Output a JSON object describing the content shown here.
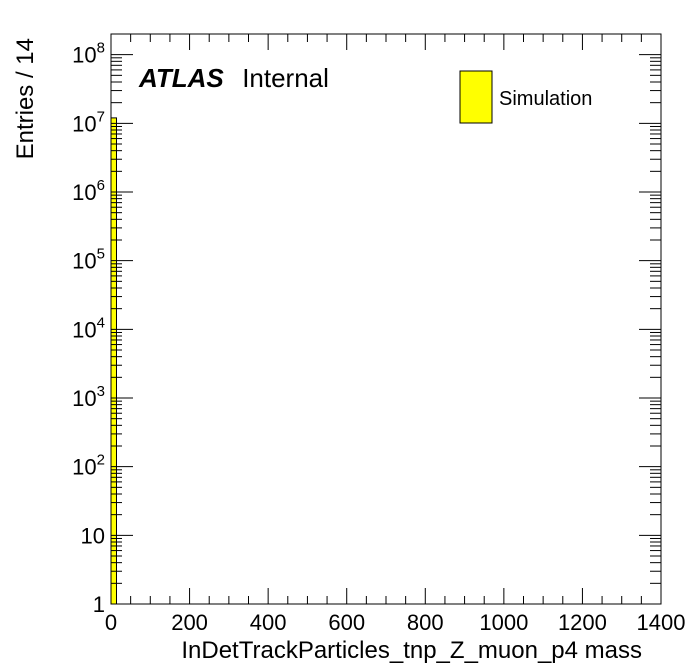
{
  "chart_data": {
    "type": "bar",
    "xlabel": "InDetTrackParticles_tnp_Z_muon_p4 mass",
    "ylabel": "Entries / 14",
    "xlim": [
      0,
      1400
    ],
    "ylim": [
      1,
      200000000
    ],
    "y_scale": "log",
    "bin_width": 14,
    "x_ticks": [
      0,
      200,
      400,
      600,
      800,
      1000,
      1200,
      1400
    ],
    "x_tick_labels": [
      "0",
      "200",
      "400",
      "600",
      "800",
      "1000",
      "1200",
      "1400"
    ],
    "y_ticks": [
      {
        "value": 1,
        "base": "1",
        "exp": ""
      },
      {
        "value": 10,
        "base": "10",
        "exp": ""
      },
      {
        "value": 100,
        "base": "10",
        "exp": "2"
      },
      {
        "value": 1000,
        "base": "10",
        "exp": "3"
      },
      {
        "value": 10000,
        "base": "10",
        "exp": "4"
      },
      {
        "value": 100000,
        "base": "10",
        "exp": "5"
      },
      {
        "value": 1000000,
        "base": "10",
        "exp": "6"
      },
      {
        "value": 10000000,
        "base": "10",
        "exp": "7"
      },
      {
        "value": 100000000,
        "base": "10",
        "exp": "8"
      }
    ],
    "series": [
      {
        "name": "Simulation",
        "color": "#ffff00",
        "edge_color": "#000000",
        "bins": [
          {
            "x_low": 0,
            "x_high": 14,
            "value": 12000000
          }
        ]
      }
    ],
    "legend": {
      "entries": [
        "Simulation"
      ],
      "placement": "top-right"
    },
    "annotations": {
      "label_bold": "ATLAS",
      "label_normal": "Internal"
    },
    "grid": false
  }
}
